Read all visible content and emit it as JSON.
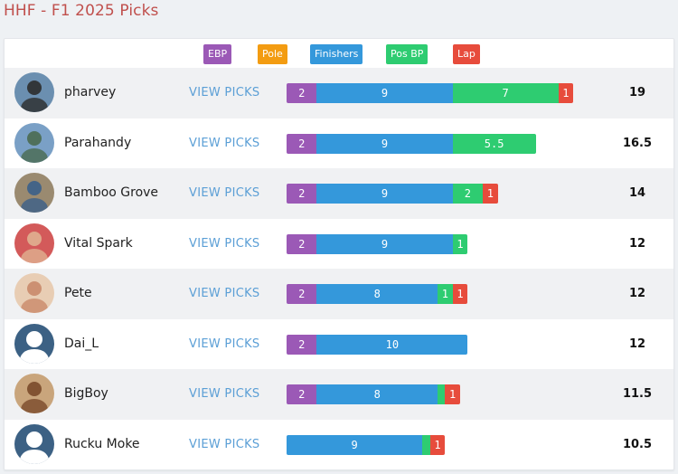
{
  "page": {
    "title": "HHF - F1 2025 Picks"
  },
  "legend": [
    {
      "key": "ebp",
      "label": "EBP",
      "color": "#9b59b6"
    },
    {
      "key": "pole",
      "label": "Pole",
      "color": "#f39c12"
    },
    {
      "key": "finishers",
      "label": "Finishers",
      "color": "#3498db"
    },
    {
      "key": "pos_bp",
      "label": "Pos BP",
      "color": "#2ecc71"
    },
    {
      "key": "lap",
      "label": "Lap",
      "color": "#e74c3c"
    }
  ],
  "view_picks_label": "VIEW PICKS",
  "players": [
    {
      "name": "pharvey",
      "avatar": "photo-avatar-icon",
      "total": "19",
      "segments": [
        {
          "key": "ebp",
          "value": 2
        },
        {
          "key": "finishers",
          "value": 9
        },
        {
          "key": "pos_bp",
          "value": 7
        },
        {
          "key": "lap",
          "value": 1
        }
      ],
      "avatar_colors": [
        "#6b8fb0",
        "#2c2c2c"
      ]
    },
    {
      "name": "Parahandy",
      "avatar": "photo-avatar-icon",
      "total": "16.5",
      "segments": [
        {
          "key": "ebp",
          "value": 2
        },
        {
          "key": "finishers",
          "value": 9
        },
        {
          "key": "pos_bp",
          "value": 5.5
        }
      ],
      "avatar_colors": [
        "#7aa0c6",
        "#4a6a50"
      ]
    },
    {
      "name": "Bamboo Grove",
      "avatar": "photo-avatar-icon",
      "total": "14",
      "segments": [
        {
          "key": "ebp",
          "value": 2
        },
        {
          "key": "finishers",
          "value": 9
        },
        {
          "key": "pos_bp",
          "value": 2
        },
        {
          "key": "lap",
          "value": 1
        }
      ],
      "avatar_colors": [
        "#9a8a70",
        "#3b5f8a"
      ]
    },
    {
      "name": "Vital Spark",
      "avatar": "photo-avatar-icon",
      "total": "12",
      "segments": [
        {
          "key": "ebp",
          "value": 2
        },
        {
          "key": "finishers",
          "value": 9
        },
        {
          "key": "pos_bp",
          "value": 1
        }
      ],
      "avatar_colors": [
        "#d35a5a",
        "#e0b090"
      ]
    },
    {
      "name": "Pete",
      "avatar": "photo-avatar-icon",
      "total": "12",
      "segments": [
        {
          "key": "ebp",
          "value": 2
        },
        {
          "key": "finishers",
          "value": 8
        },
        {
          "key": "pos_bp",
          "value": 1
        },
        {
          "key": "lap",
          "value": 1
        }
      ],
      "avatar_colors": [
        "#e8cdb4",
        "#c98a6a"
      ]
    },
    {
      "name": "Dai_L",
      "avatar": "default-user-icon",
      "total": "12",
      "segments": [
        {
          "key": "ebp",
          "value": 2
        },
        {
          "key": "finishers",
          "value": 10
        }
      ],
      "avatar_colors": [
        "#3c6184",
        "#ffffff"
      ]
    },
    {
      "name": "BigBoy",
      "avatar": "photo-avatar-icon",
      "total": "11.5",
      "segments": [
        {
          "key": "ebp",
          "value": 2
        },
        {
          "key": "finishers",
          "value": 8
        },
        {
          "key": "pos_bp",
          "value": 0.5
        },
        {
          "key": "lap",
          "value": 1
        }
      ],
      "avatar_colors": [
        "#c9a57c",
        "#7a4a2a"
      ]
    },
    {
      "name": "Rucku Moke",
      "avatar": "default-user-icon",
      "total": "10.5",
      "segments": [
        {
          "key": "finishers",
          "value": 9
        },
        {
          "key": "pos_bp",
          "value": 0.5
        },
        {
          "key": "lap",
          "value": 1
        }
      ],
      "avatar_colors": [
        "#3c6184",
        "#ffffff"
      ]
    }
  ]
}
